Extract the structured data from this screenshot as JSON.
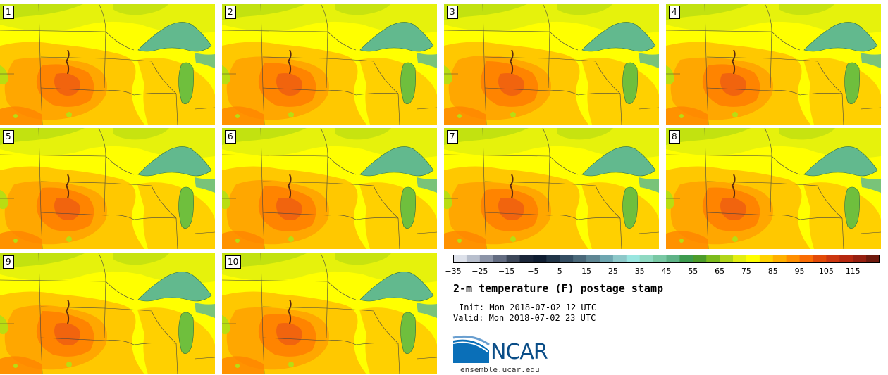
{
  "members": [
    "1",
    "2",
    "3",
    "4",
    "5",
    "6",
    "7",
    "8",
    "9",
    "10"
  ],
  "title": "2-m temperature (F) postage stamp",
  "init": "Init: Mon 2018-07-02 12 UTC",
  "valid": "Valid: Mon 2018-07-02 23 UTC",
  "logo_text": "NCAR",
  "url": "ensemble.ucar.edu",
  "colorbar": {
    "ticks": [
      "−35",
      "−25",
      "−15",
      "−5",
      "5",
      "15",
      "25",
      "35",
      "45",
      "55",
      "65",
      "75",
      "85",
      "95",
      "105",
      "115"
    ],
    "min": -35,
    "max": 125,
    "step": 5,
    "colors": [
      "#dde1ea",
      "#b8bfcd",
      "#8c94a7",
      "#636c81",
      "#3d4759",
      "#1b2639",
      "#0f1d31",
      "#213548",
      "#344d62",
      "#4a6879",
      "#5f8693",
      "#6ea6b0",
      "#8dc8c9",
      "#99e6e0",
      "#8fd9c2",
      "#79c8a4",
      "#5fb387",
      "#3d9b4f",
      "#4d9c2b",
      "#7cbb1d",
      "#b1d51a",
      "#e3ee12",
      "#ffff00",
      "#ffd200",
      "#ffb000",
      "#ff8f00",
      "#f96c04",
      "#e24a08",
      "#cc3710",
      "#b52810",
      "#962011",
      "#6f1a0e"
    ]
  },
  "colors": {
    "water": "#62b98e",
    "cold": "#b9dd12",
    "cool": "#e6f20c",
    "mild": "#ffff00",
    "warm": "#ffc800",
    "hot": "#ffa700",
    "hotter": "#ff8400",
    "hottest": "#f06010",
    "lake_michigan": "#6fbf3d",
    "ncar_blue": "#0a4d87"
  }
}
